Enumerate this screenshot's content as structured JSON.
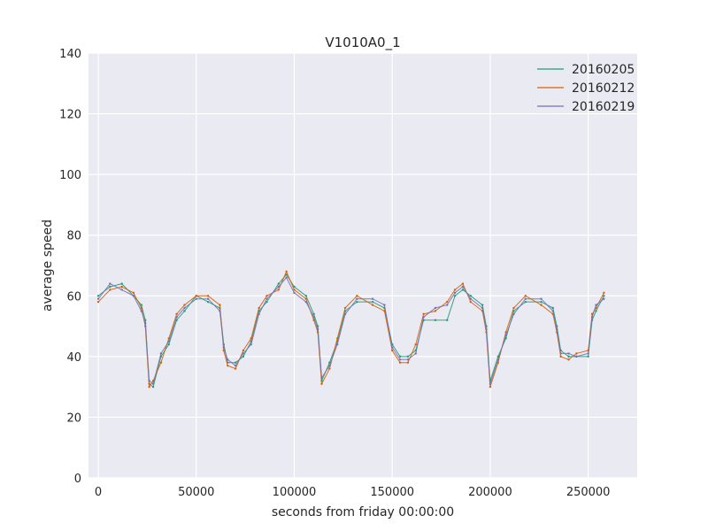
{
  "chart_data": {
    "type": "line",
    "title": "V1010A0_1",
    "xlabel": "seconds from friday 00:00:00",
    "ylabel": "average speed",
    "xlim": [
      -5000,
      275000
    ],
    "ylim": [
      0,
      140
    ],
    "xticks": [
      0,
      50000,
      100000,
      150000,
      200000,
      250000
    ],
    "xtick_labels": [
      "0",
      "50000",
      "100000",
      "150000",
      "200000",
      "250000"
    ],
    "yticks": [
      0,
      20,
      40,
      60,
      80,
      100,
      120,
      140
    ],
    "ytick_labels": [
      "0",
      "20",
      "40",
      "60",
      "80",
      "100",
      "120",
      "140"
    ],
    "grid": true,
    "legend_position": "top-right",
    "background_color": "#eaeaf2",
    "series": [
      {
        "name": "20160205",
        "color": "#1b9e77",
        "x": [
          0,
          6000,
          12000,
          18000,
          22000,
          24000,
          26000,
          28000,
          32000,
          36000,
          40000,
          44000,
          50000,
          56000,
          62000,
          64000,
          66000,
          70000,
          74000,
          78000,
          82000,
          86000,
          92000,
          96000,
          100000,
          106000,
          110000,
          112000,
          114000,
          118000,
          122000,
          126000,
          132000,
          140000,
          146000,
          150000,
          154000,
          158000,
          162000,
          166000,
          172000,
          178000,
          182000,
          186000,
          190000,
          196000,
          198000,
          200000,
          204000,
          208000,
          212000,
          218000,
          226000,
          232000,
          234000,
          236000,
          240000,
          244000,
          250000,
          252000,
          254000,
          258000
        ],
        "y": [
          60,
          63,
          64,
          60,
          57,
          52,
          31,
          30,
          40,
          44,
          52,
          55,
          60,
          58,
          56,
          44,
          38,
          38,
          40,
          45,
          55,
          58,
          64,
          67,
          63,
          60,
          54,
          50,
          32,
          38,
          45,
          55,
          58,
          58,
          56,
          44,
          40,
          40,
          42,
          52,
          52,
          52,
          60,
          62,
          60,
          57,
          50,
          32,
          40,
          46,
          55,
          58,
          58,
          56,
          50,
          42,
          40,
          40,
          40,
          52,
          55,
          60
        ]
      },
      {
        "name": "20160212",
        "color": "#d95f02",
        "x": [
          0,
          6000,
          12000,
          18000,
          22000,
          24000,
          26000,
          28000,
          32000,
          36000,
          40000,
          44000,
          50000,
          56000,
          62000,
          64000,
          66000,
          70000,
          74000,
          78000,
          82000,
          86000,
          92000,
          96000,
          100000,
          106000,
          110000,
          112000,
          114000,
          118000,
          122000,
          126000,
          132000,
          140000,
          146000,
          150000,
          154000,
          158000,
          162000,
          166000,
          172000,
          178000,
          182000,
          186000,
          190000,
          196000,
          198000,
          200000,
          204000,
          208000,
          212000,
          218000,
          226000,
          232000,
          234000,
          236000,
          240000,
          244000,
          250000,
          252000,
          254000,
          258000
        ],
        "y": [
          58,
          62,
          63,
          61,
          56,
          50,
          30,
          32,
          38,
          46,
          54,
          57,
          60,
          60,
          57,
          42,
          37,
          36,
          42,
          46,
          56,
          60,
          62,
          68,
          62,
          59,
          52,
          48,
          31,
          36,
          46,
          56,
          60,
          57,
          55,
          42,
          38,
          38,
          44,
          54,
          55,
          58,
          62,
          64,
          58,
          55,
          48,
          30,
          38,
          48,
          56,
          60,
          57,
          54,
          48,
          40,
          39,
          41,
          42,
          54,
          56,
          61
        ]
      },
      {
        "name": "20160219",
        "color": "#7570b3",
        "x": [
          0,
          6000,
          12000,
          18000,
          22000,
          24000,
          26000,
          28000,
          32000,
          36000,
          40000,
          44000,
          50000,
          56000,
          62000,
          64000,
          66000,
          70000,
          74000,
          78000,
          82000,
          86000,
          92000,
          96000,
          100000,
          106000,
          110000,
          112000,
          114000,
          118000,
          122000,
          126000,
          132000,
          140000,
          146000,
          150000,
          154000,
          158000,
          162000,
          166000,
          172000,
          178000,
          182000,
          186000,
          190000,
          196000,
          198000,
          200000,
          204000,
          208000,
          212000,
          218000,
          226000,
          232000,
          234000,
          236000,
          240000,
          244000,
          250000,
          252000,
          254000,
          258000
        ],
        "y": [
          59,
          64,
          62,
          60,
          55,
          51,
          32,
          31,
          41,
          45,
          53,
          56,
          59,
          59,
          55,
          43,
          39,
          37,
          41,
          44,
          54,
          59,
          63,
          66,
          61,
          58,
          53,
          49,
          33,
          37,
          44,
          54,
          59,
          59,
          57,
          43,
          39,
          39,
          41,
          53,
          56,
          57,
          61,
          63,
          59,
          56,
          49,
          31,
          39,
          47,
          54,
          59,
          59,
          55,
          49,
          41,
          41,
          40,
          41,
          53,
          57,
          59
        ]
      }
    ]
  }
}
